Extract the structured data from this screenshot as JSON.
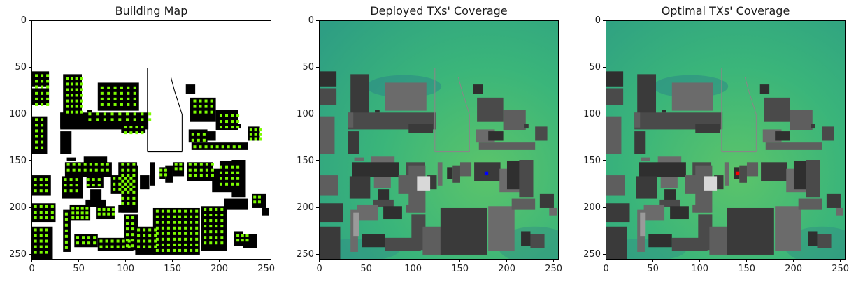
{
  "chart_data": [
    {
      "type": "heatmap",
      "title": "Building Map",
      "xlabel": "",
      "ylabel": "",
      "xlim": [
        0,
        255
      ],
      "ylim": [
        255,
        0
      ],
      "xticks": [
        0,
        50,
        100,
        150,
        200,
        250
      ],
      "yticks": [
        0,
        50,
        100,
        150,
        200,
        250
      ],
      "background": "#ffffff",
      "building_color": "#000000",
      "marker_color": "#7cfc00"
    },
    {
      "type": "heatmap",
      "title": "Deployed TXs' Coverage",
      "xlabel": "",
      "ylabel": "",
      "xlim": [
        0,
        255
      ],
      "ylim": [
        255,
        0
      ],
      "xticks": [
        0,
        50,
        100,
        150,
        200,
        250
      ],
      "yticks": [
        0,
        50,
        100,
        150,
        200,
        250
      ],
      "coverage_colors": [
        "#2e9e83",
        "#3ab57a",
        "#5cc46a",
        "#2a7f8a"
      ],
      "tx_marker": {
        "x": 178,
        "y": 163,
        "color": "#0000ff"
      }
    },
    {
      "type": "heatmap",
      "title": "Optimal TXs' Coverage",
      "xlabel": "",
      "ylabel": "",
      "xlim": [
        0,
        255
      ],
      "ylim": [
        255,
        0
      ],
      "xticks": [
        0,
        50,
        100,
        150,
        200,
        250
      ],
      "yticks": [
        0,
        50,
        100,
        150,
        200,
        250
      ],
      "coverage_colors": [
        "#2e9e83",
        "#3ab57a",
        "#5cc46a",
        "#2a7f8a"
      ],
      "tx_marker": {
        "x": 140,
        "y": 163,
        "color": "#ff0000"
      }
    }
  ]
}
